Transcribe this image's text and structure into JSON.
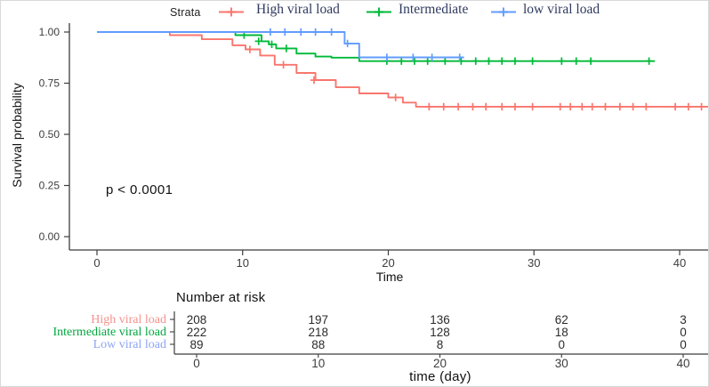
{
  "chart_data": {
    "type": "line",
    "subtype": "kaplan-meier-step-curves",
    "title": "",
    "xlabel": "Time",
    "ylabel": "Survival probability",
    "xlim": [
      0,
      42
    ],
    "ylim": [
      0.0,
      1.0
    ],
    "x_ticks": [
      0,
      10,
      20,
      30,
      40
    ],
    "y_ticks": [
      "1.00",
      "0.75",
      "0.50",
      "0.25",
      "0.00"
    ],
    "grid": false,
    "legend_position": "top",
    "legend_title": "Strata",
    "p_value_text": "p < 0.0001",
    "series": [
      {
        "name": "High viral load",
        "color": "#F8766D",
        "steps": [
          [
            0,
            1
          ],
          [
            5,
            1
          ],
          [
            5,
            0.985
          ],
          [
            7.2,
            0.985
          ],
          [
            7.2,
            0.965
          ],
          [
            9.3,
            0.965
          ],
          [
            9.3,
            0.935
          ],
          [
            10.2,
            0.935
          ],
          [
            10.2,
            0.915
          ],
          [
            11.2,
            0.915
          ],
          [
            11.2,
            0.885
          ],
          [
            12.2,
            0.885
          ],
          [
            12.2,
            0.84
          ],
          [
            13.7,
            0.84
          ],
          [
            13.7,
            0.8
          ],
          [
            15,
            0.8
          ],
          [
            15,
            0.765
          ],
          [
            16.4,
            0.765
          ],
          [
            16.4,
            0.73
          ],
          [
            18,
            0.73
          ],
          [
            18,
            0.7
          ],
          [
            20,
            0.7
          ],
          [
            20,
            0.68
          ],
          [
            21,
            0.68
          ],
          [
            21,
            0.655
          ],
          [
            21.9,
            0.655
          ],
          [
            21.9,
            0.635
          ],
          [
            42,
            0.635
          ]
        ],
        "censor_marks": [
          [
            10.5,
            0.915
          ],
          [
            12.8,
            0.84
          ],
          [
            14.9,
            0.765
          ],
          [
            20.5,
            0.68
          ],
          [
            22.8,
            0.635
          ],
          [
            23.8,
            0.635
          ],
          [
            24.8,
            0.635
          ],
          [
            25.8,
            0.635
          ],
          [
            26.7,
            0.635
          ],
          [
            27.8,
            0.635
          ],
          [
            28.7,
            0.635
          ],
          [
            29.9,
            0.635
          ],
          [
            31.8,
            0.635
          ],
          [
            32.5,
            0.635
          ],
          [
            33.3,
            0.635
          ],
          [
            34.0,
            0.635
          ],
          [
            34.9,
            0.635
          ],
          [
            35.9,
            0.635
          ],
          [
            36.8,
            0.635
          ],
          [
            37.7,
            0.635
          ],
          [
            39.7,
            0.635
          ],
          [
            40.6,
            0.635
          ],
          [
            41.5,
            0.635
          ]
        ]
      },
      {
        "name": "Intermediate",
        "color": "#00BA38",
        "steps": [
          [
            0,
            1
          ],
          [
            9.5,
            1
          ],
          [
            9.5,
            0.985
          ],
          [
            11.3,
            0.985
          ],
          [
            11.3,
            0.955
          ],
          [
            11.8,
            0.955
          ],
          [
            11.8,
            0.94
          ],
          [
            12.3,
            0.94
          ],
          [
            12.3,
            0.92
          ],
          [
            13.7,
            0.92
          ],
          [
            13.7,
            0.895
          ],
          [
            15,
            0.895
          ],
          [
            15,
            0.88
          ],
          [
            16.1,
            0.88
          ],
          [
            16.1,
            0.875
          ],
          [
            18,
            0.875
          ],
          [
            18,
            0.858
          ],
          [
            38.3,
            0.858
          ]
        ],
        "censor_marks": [
          [
            10.1,
            0.985
          ],
          [
            11.1,
            0.955
          ],
          [
            12.0,
            0.94
          ],
          [
            13.0,
            0.92
          ],
          [
            19.9,
            0.858
          ],
          [
            20.9,
            0.858
          ],
          [
            21.8,
            0.858
          ],
          [
            22.7,
            0.858
          ],
          [
            23.9,
            0.858
          ],
          [
            25.0,
            0.858
          ],
          [
            26.0,
            0.858
          ],
          [
            26.9,
            0.858
          ],
          [
            27.8,
            0.858
          ],
          [
            28.7,
            0.858
          ],
          [
            29.9,
            0.858
          ],
          [
            31.9,
            0.858
          ],
          [
            32.9,
            0.858
          ],
          [
            33.9,
            0.858
          ],
          [
            37.9,
            0.858
          ]
        ]
      },
      {
        "name": "low viral load",
        "color": "#619CFF",
        "steps": [
          [
            0,
            1
          ],
          [
            17,
            1
          ],
          [
            17,
            0.944
          ],
          [
            18,
            0.944
          ],
          [
            18,
            0.876
          ],
          [
            25.2,
            0.876
          ]
        ],
        "censor_marks": [
          [
            11.9,
            1
          ],
          [
            12.9,
            1
          ],
          [
            14.0,
            1
          ],
          [
            15.0,
            1
          ],
          [
            16.1,
            1
          ],
          [
            17.2,
            0.944
          ],
          [
            19.9,
            0.876
          ],
          [
            21.7,
            0.876
          ],
          [
            23.0,
            0.876
          ],
          [
            24.9,
            0.876
          ]
        ]
      }
    ],
    "risk_table": {
      "title": "Number at risk",
      "xlabel": "time (day)",
      "times": [
        0,
        10,
        20,
        30,
        40
      ],
      "rows": [
        {
          "label": "High viral load",
          "color": "#F5918C",
          "counts": [
            208,
            197,
            136,
            62,
            3
          ]
        },
        {
          "label": "Intermediate viral load",
          "color": "#00A73E",
          "counts": [
            222,
            218,
            128,
            18,
            0
          ]
        },
        {
          "label": "Low viral load",
          "color": "#8DA5F4",
          "counts": [
            89,
            88,
            8,
            0,
            0
          ]
        }
      ]
    }
  }
}
